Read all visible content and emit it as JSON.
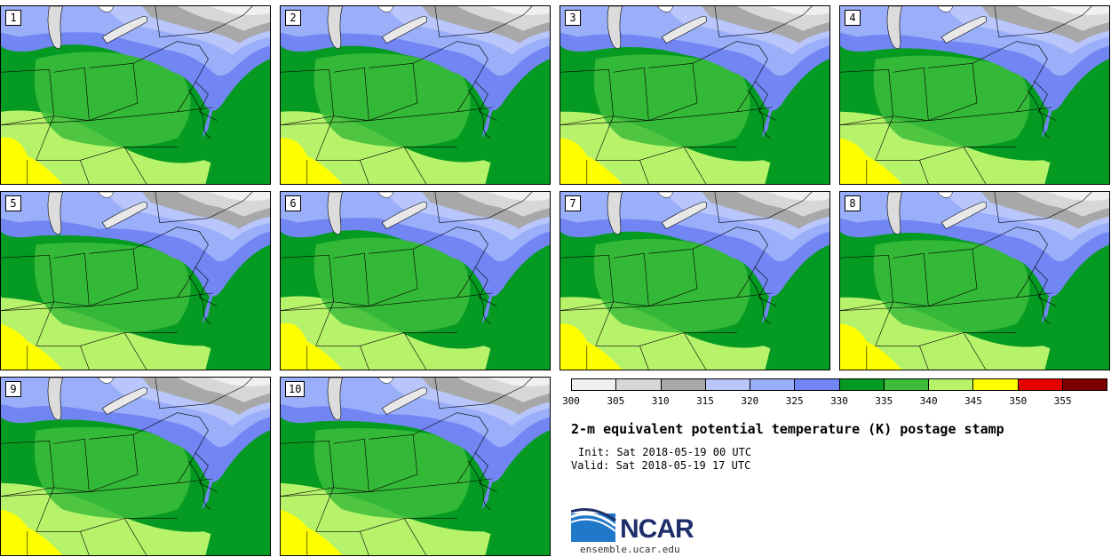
{
  "panels": [
    {
      "label": "1"
    },
    {
      "label": "2"
    },
    {
      "label": "3"
    },
    {
      "label": "4"
    },
    {
      "label": "5"
    },
    {
      "label": "6"
    },
    {
      "label": "7"
    },
    {
      "label": "8"
    },
    {
      "label": "9"
    },
    {
      "label": "10"
    }
  ],
  "colorbar": {
    "bins": [
      {
        "min": 300,
        "max": 305,
        "color": "#f0f0f0"
      },
      {
        "min": 305,
        "max": 310,
        "color": "#d7d7d7"
      },
      {
        "min": 310,
        "max": 315,
        "color": "#a8a8a8"
      },
      {
        "min": 315,
        "max": 320,
        "color": "#b8c6fb"
      },
      {
        "min": 320,
        "max": 325,
        "color": "#9aaefa"
      },
      {
        "min": 325,
        "max": 330,
        "color": "#7185f3"
      },
      {
        "min": 330,
        "max": 335,
        "color": "#059a22"
      },
      {
        "min": 335,
        "max": 340,
        "color": "#3dbd3b"
      },
      {
        "min": 340,
        "max": 345,
        "color": "#b7f26b"
      },
      {
        "min": 345,
        "max": 350,
        "color": "#ffff00"
      },
      {
        "min": 350,
        "max": 355,
        "color": "#e60000"
      },
      {
        "min": 355,
        "max": 360,
        "color": "#7f0000"
      }
    ],
    "tick_labels": [
      "300",
      "305",
      "310",
      "315",
      "320",
      "325",
      "330",
      "335",
      "340",
      "345",
      "350",
      "355"
    ]
  },
  "title": "2-m equivalent potential temperature (K) postage stamp",
  "init": "Init: Sat 2018-05-19 00 UTC",
  "valid": "Valid: Sat 2018-05-19 17 UTC",
  "logo": {
    "name": "NCAR",
    "url_text": "ensemble.ucar.edu"
  },
  "colors": {
    "lake": "#ffffff",
    "state_lines": "#000000"
  }
}
